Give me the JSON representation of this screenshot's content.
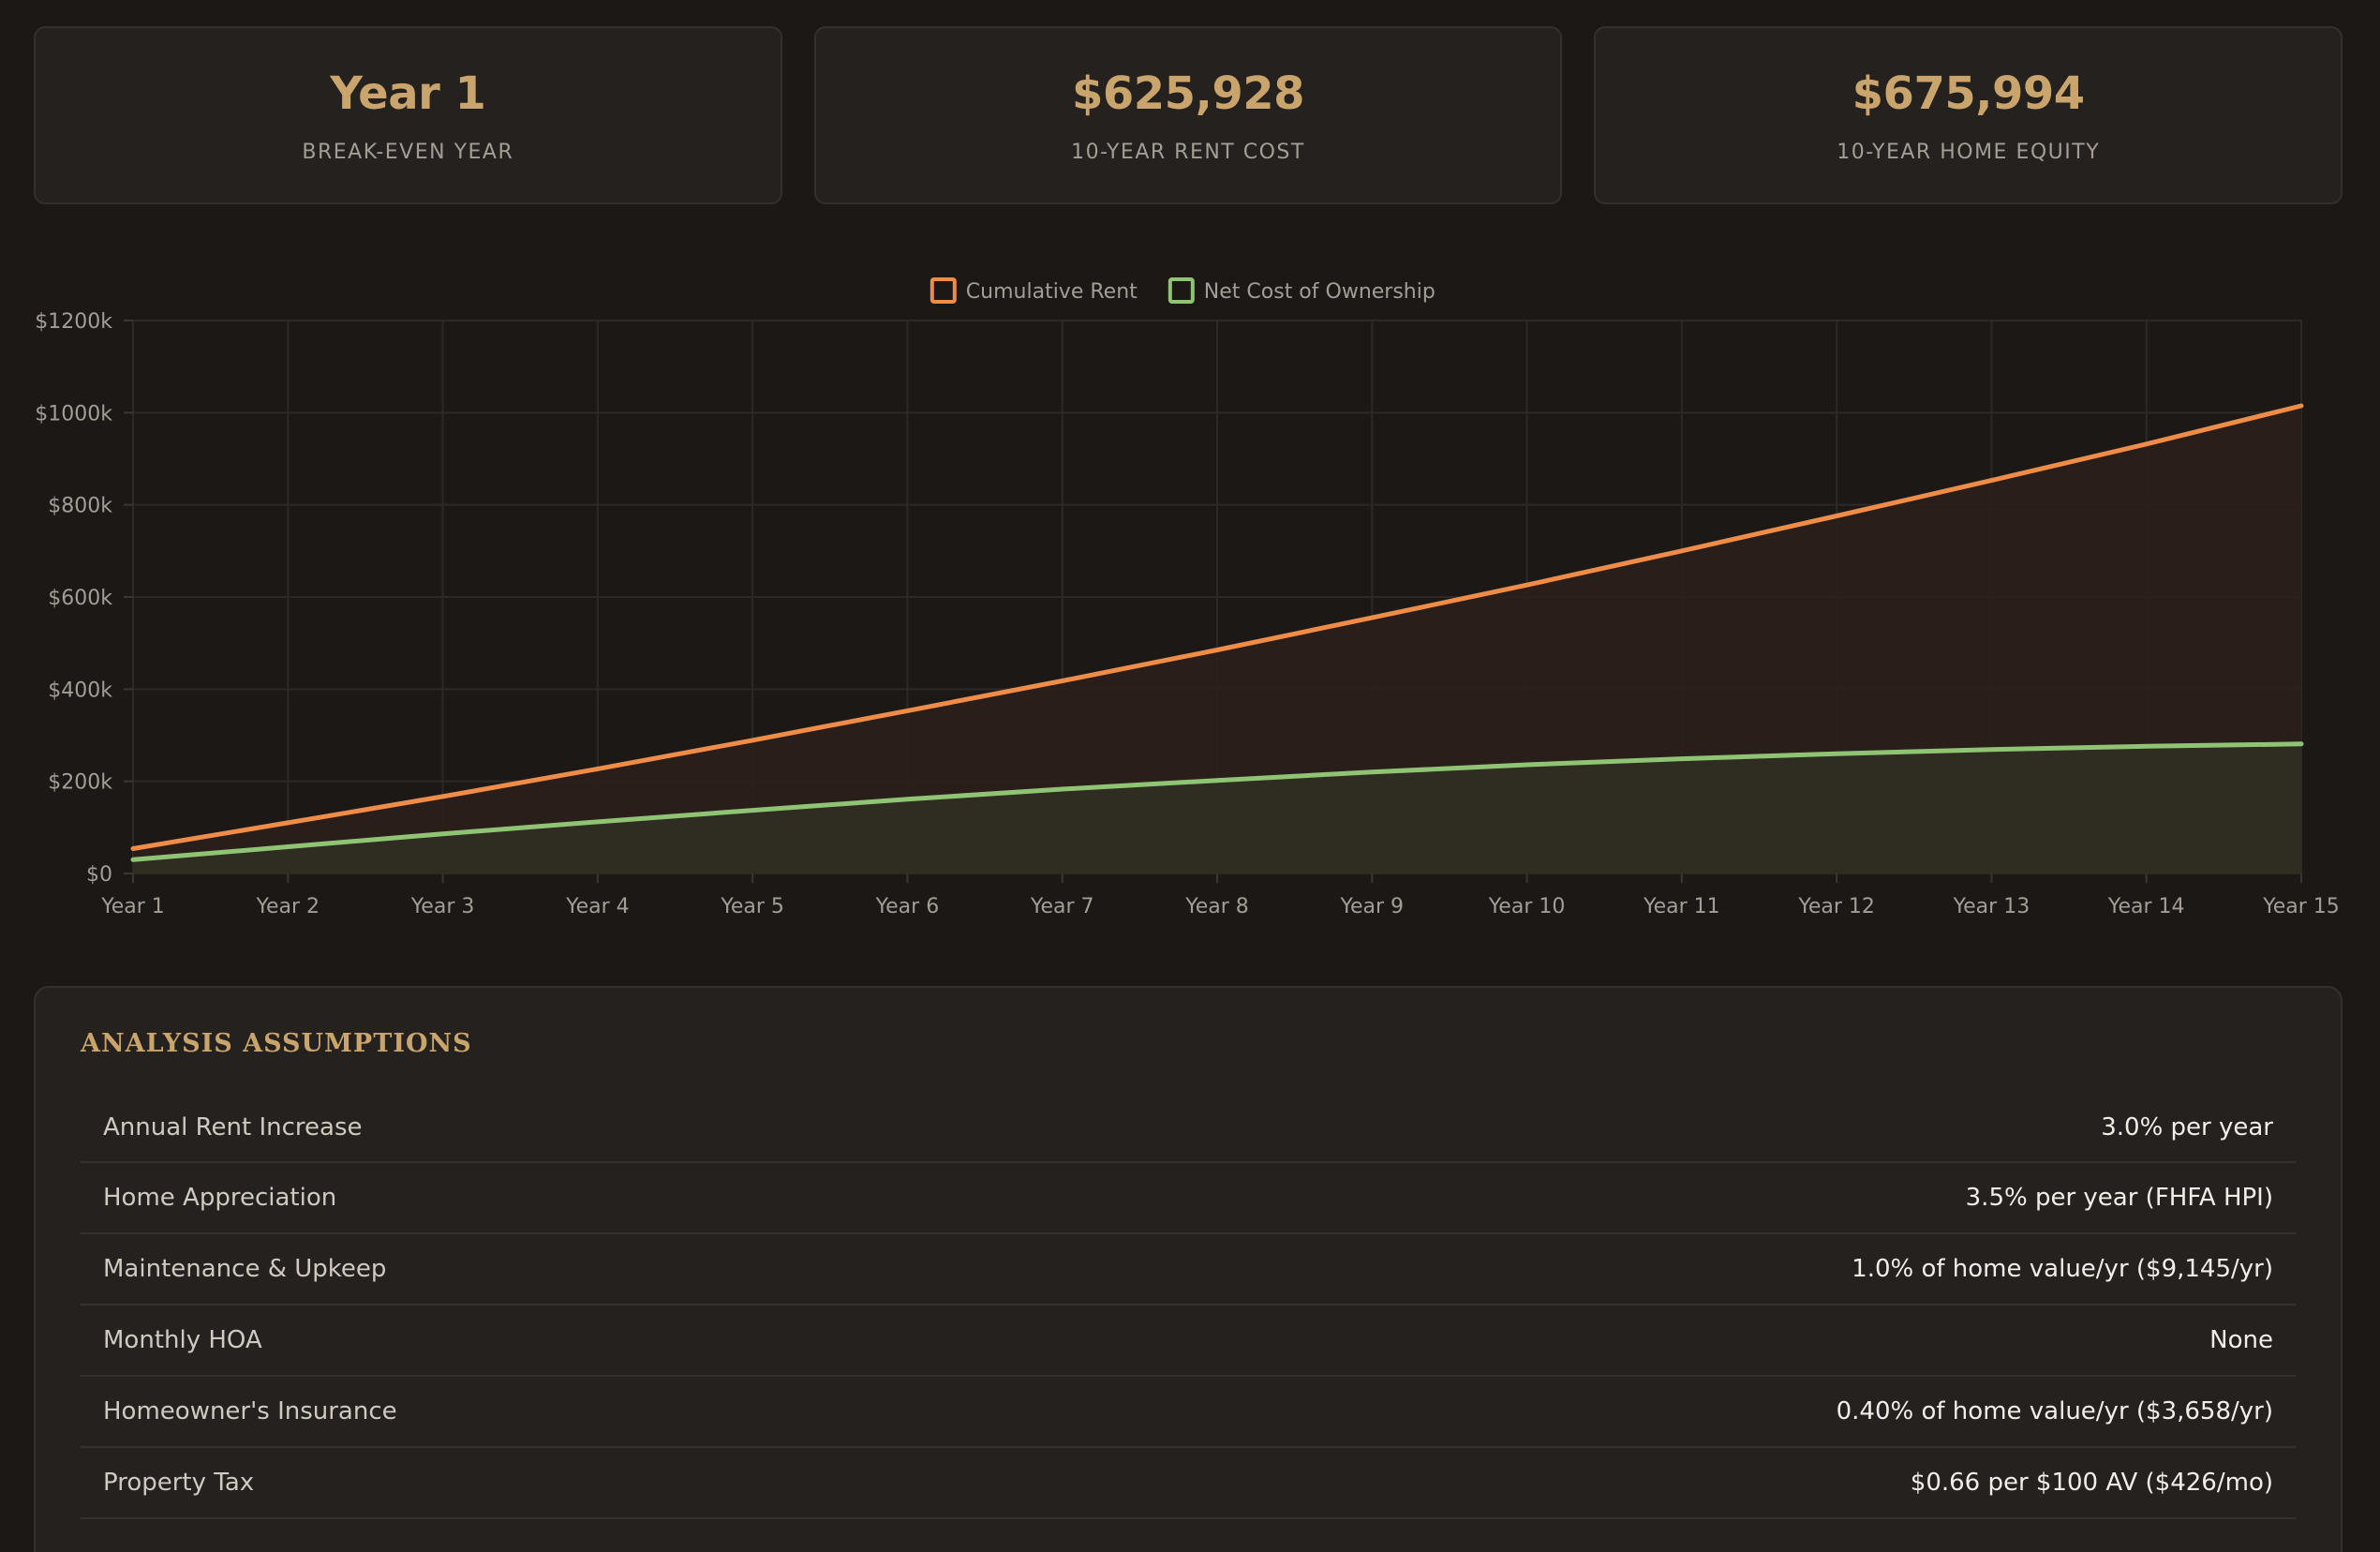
{
  "stats": [
    {
      "value": "Year 1",
      "label": "BREAK-EVEN YEAR"
    },
    {
      "value": "$625,928",
      "label": "10-YEAR RENT COST"
    },
    {
      "value": "$675,994",
      "label": "10-YEAR HOME EQUITY"
    }
  ],
  "colors": {
    "rent": "#ee8c48",
    "ownership": "#8fc474",
    "accent": "#c9a46c"
  },
  "chart_data": {
    "type": "line",
    "title": "",
    "xlabel": "",
    "ylabel": "",
    "legend_position": "top-center",
    "grid": true,
    "categories": [
      "Year 1",
      "Year 2",
      "Year 3",
      "Year 4",
      "Year 5",
      "Year 6",
      "Year 7",
      "Year 8",
      "Year 9",
      "Year 10",
      "Year 11",
      "Year 12",
      "Year 13",
      "Year 14",
      "Year 15"
    ],
    "y_ticks": [
      0,
      200,
      400,
      600,
      800,
      1000,
      1200
    ],
    "y_tick_labels": [
      "$0",
      "$200k",
      "$400k",
      "$600k",
      "$800k",
      "$1000k",
      "$1200k"
    ],
    "ylim": [
      0,
      1200000
    ],
    "series": [
      {
        "name": "Cumulative Rent",
        "color": "#ee8c48",
        "fill": "#2b1f19",
        "values": [
          54000,
          110000,
          167000,
          227000,
          289000,
          353000,
          418000,
          485000,
          555000,
          626000,
          700000,
          776000,
          853000,
          932000,
          1015000
        ]
      },
      {
        "name": "Net Cost of Ownership",
        "color": "#8fc474",
        "fill": "#302d24",
        "values": [
          30000,
          58000,
          86000,
          112000,
          137000,
          161000,
          183000,
          202000,
          220000,
          236000,
          249000,
          260000,
          269000,
          276000,
          281000
        ]
      }
    ]
  },
  "assumptions": {
    "title": "ANALYSIS ASSUMPTIONS",
    "rows": [
      {
        "label": "Annual Rent Increase",
        "value": "3.0% per year"
      },
      {
        "label": "Home Appreciation",
        "value": "3.5% per year (FHFA HPI)"
      },
      {
        "label": "Maintenance & Upkeep",
        "value": "1.0% of home value/yr ($9,145/yr)"
      },
      {
        "label": "Monthly HOA",
        "value": "None"
      },
      {
        "label": "Homeowner's Insurance",
        "value": "0.40% of home value/yr ($3,658/yr)"
      },
      {
        "label": "Property Tax",
        "value": "$0.66 per $100 AV ($426/mo)"
      }
    ]
  }
}
